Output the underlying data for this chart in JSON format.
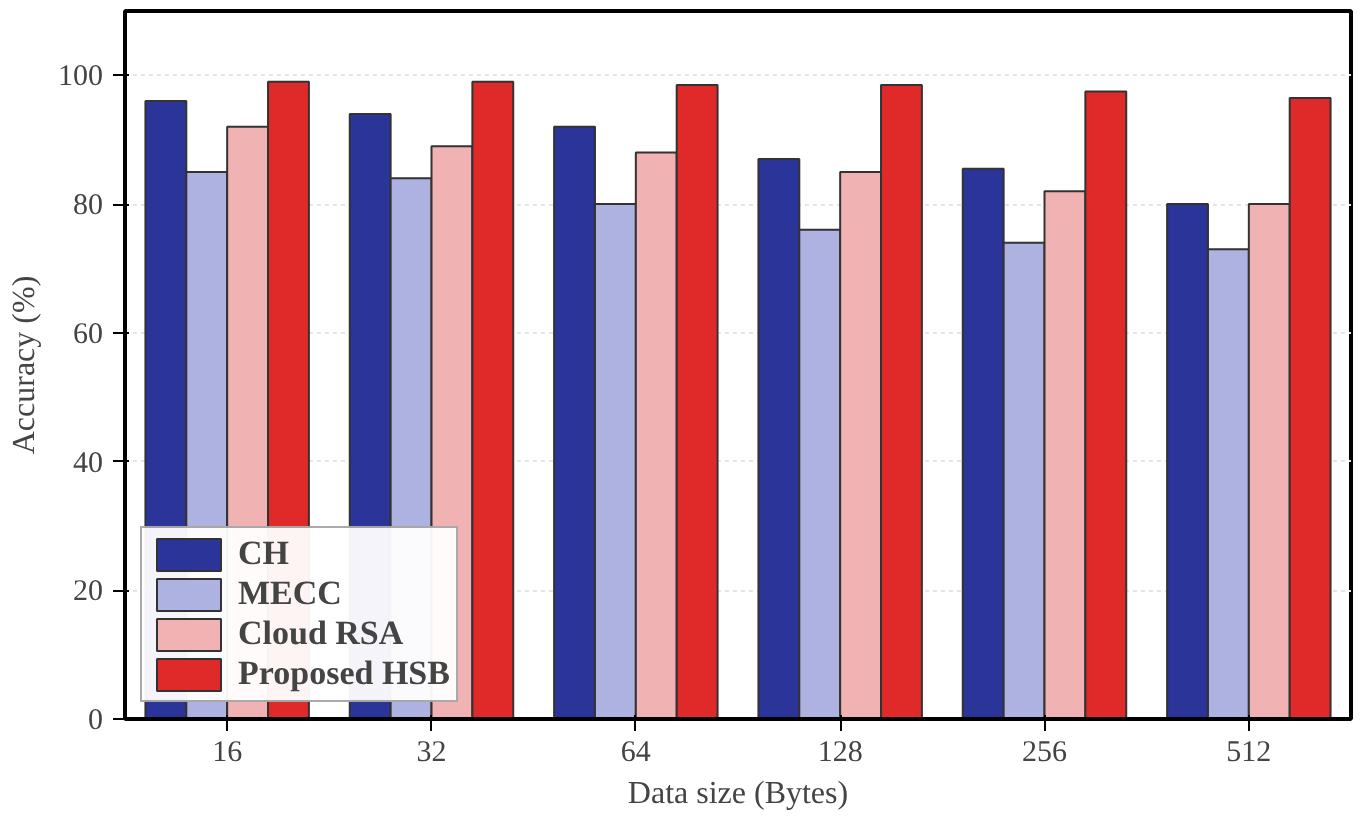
{
  "chart_data": {
    "type": "bar",
    "xlabel": "Data size (Bytes)",
    "ylabel": "Accuracy (%)",
    "categories": [
      "16",
      "32",
      "64",
      "128",
      "256",
      "512"
    ],
    "series": [
      {
        "name": "CH",
        "color": "#2b3499",
        "values": [
          96,
          94,
          92,
          87,
          85.5,
          80
        ]
      },
      {
        "name": "MECC",
        "color": "#aeb2e0",
        "values": [
          85,
          84,
          80,
          76,
          74,
          73
        ]
      },
      {
        "name": "Cloud RSA",
        "color": "#f0b2b2",
        "values": [
          92,
          89,
          88,
          85,
          82,
          80
        ]
      },
      {
        "name": "Proposed HSB",
        "color": "#e02a2a",
        "values": [
          99,
          99,
          98.5,
          98.5,
          97.5,
          96.5
        ]
      }
    ],
    "ylim": [
      0,
      110
    ],
    "yticks": [
      0,
      20,
      40,
      60,
      80,
      100
    ],
    "grid": true,
    "legend": "bottom left"
  }
}
